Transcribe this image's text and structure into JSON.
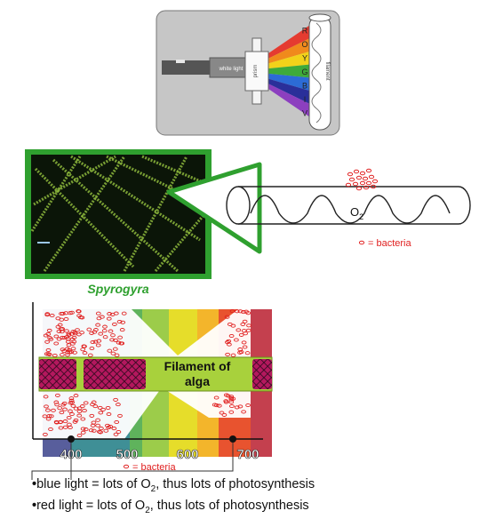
{
  "prism": {
    "white_light_label": "white light",
    "prism_label": "prism",
    "filament_label": "filament",
    "spectrum_letters": [
      "R",
      "O",
      "Y",
      "G",
      "B",
      "I",
      "V"
    ],
    "band_colors": [
      "#e53b30",
      "#f08a1c",
      "#f2d21a",
      "#3eaa3a",
      "#2c6bd6",
      "#2a2f9a",
      "#8c3fbf"
    ]
  },
  "microscope": {
    "caption": "Spyrogyra",
    "oxygen_label": "O",
    "oxygen_subscript": "2",
    "bacteria_legend": "= bacteria",
    "frame_color": "#2fa02f",
    "bacteria_color": "#e02020"
  },
  "experiment": {
    "filament_label_line1": "Filament of",
    "filament_label_line2": "alga",
    "wavelength_ticks": [
      "400",
      "500",
      "600",
      "700"
    ],
    "bacteria_legend": "= bacteria",
    "band_colors": [
      "#585e9c",
      "#3f8f96",
      "#5fb35c",
      "#9ccc4a",
      "#e6dd2a",
      "#f3b52b",
      "#e8532f",
      "#c4404e"
    ]
  },
  "notes": {
    "blue_prefix": "blue light = lots of O",
    "blue_suffix": ", thus lots of photosynthesis",
    "red_prefix": "red light = lots of O",
    "red_suffix": ", thus lots of photosynthesis",
    "subscript": "2"
  }
}
